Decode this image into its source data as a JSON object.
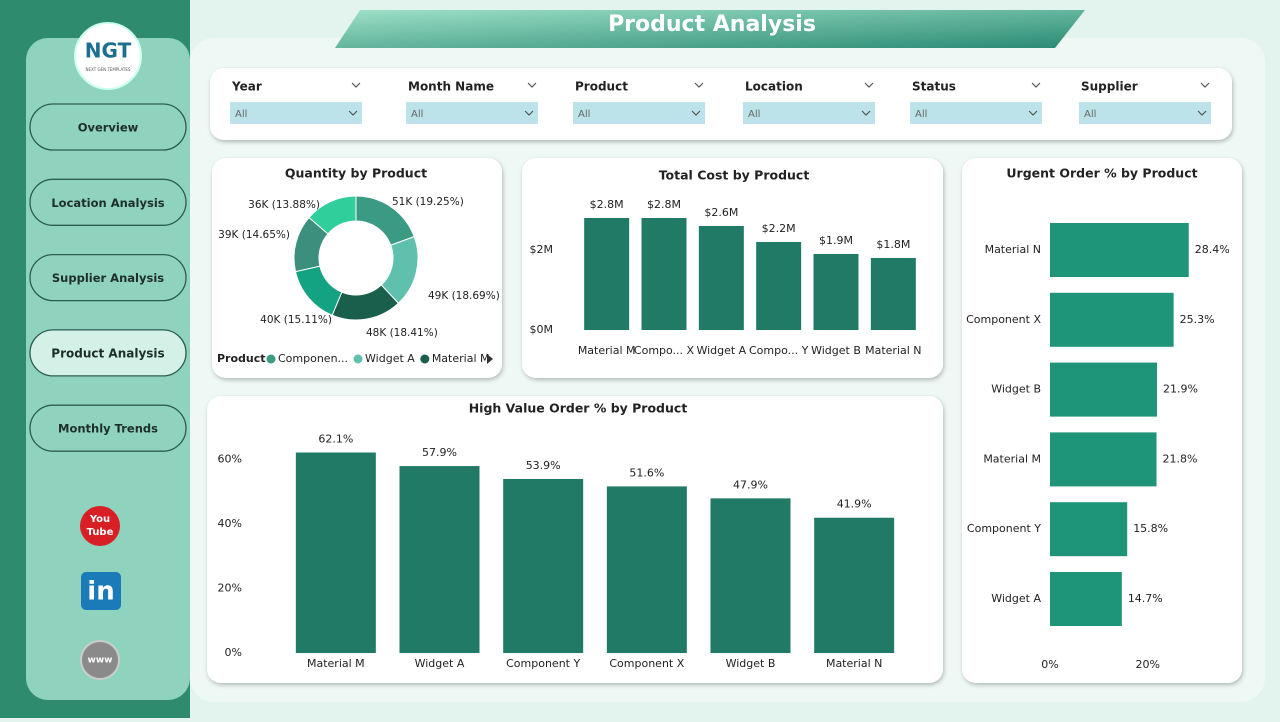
{
  "header": {
    "title": "Product Analysis"
  },
  "logo": {
    "text": "NGT",
    "subtext": "NEXT GEN TEMPLATES"
  },
  "nav": [
    "Overview",
    "Location Analysis",
    "Supplier Analysis",
    "Product Analysis",
    "Monthly Trends"
  ],
  "nav_active": 3,
  "icons": {
    "youtube": [
      "You",
      "Tube"
    ],
    "linkedin": "in",
    "web": "www"
  },
  "filters": [
    {
      "label": "Year",
      "value": "All"
    },
    {
      "label": "Month Name",
      "value": "All"
    },
    {
      "label": "Product",
      "value": "All"
    },
    {
      "label": "Location",
      "value": "All"
    },
    {
      "label": "Status",
      "value": "All"
    },
    {
      "label": "Supplier",
      "value": "All"
    }
  ],
  "chart_data": [
    {
      "type": "pie",
      "title": "Quantity by Product",
      "legend_title": "Product",
      "categories": [
        "Componen...",
        "Widget A",
        "Material M",
        null,
        null,
        null
      ],
      "values": [
        51000,
        49000,
        48000,
        40000,
        39000,
        36000
      ],
      "value_labels": [
        "51K (19.25%)",
        "49K (18.69%)",
        "48K (18.41%)",
        "40K (15.11%)",
        "39K (14.65%)",
        "36K (13.88%)"
      ],
      "colors": [
        "#3a9a83",
        "#5fc1ad",
        "#1a5e4c",
        "#14a382",
        "#3d8f7d",
        "#2fce9a"
      ]
    },
    {
      "type": "bar",
      "title": "Total Cost by Product",
      "categories": [
        "Material M",
        "Compo... X",
        "Widget A",
        "Compo... Y",
        "Widget B",
        "Material N"
      ],
      "values": [
        2800000,
        2800000,
        2600000,
        2200000,
        1900000,
        1800000
      ],
      "value_labels": [
        "$2.8M",
        "$2.8M",
        "$2.6M",
        "$2.2M",
        "$1.9M",
        "$1.8M"
      ],
      "color": "#217a66",
      "ylim": [
        0,
        3500000
      ],
      "yticks": [
        {
          "value": 0,
          "label": "$0M"
        },
        {
          "value": 2000000,
          "label": "$2M"
        }
      ]
    },
    {
      "type": "bar",
      "title": "High Value Order % by Product",
      "categories": [
        "Material M",
        "Widget A",
        "Component Y",
        "Component X",
        "Widget B",
        "Material N"
      ],
      "values": [
        62.1,
        57.9,
        53.9,
        51.6,
        47.9,
        41.9
      ],
      "value_labels": [
        "62.1%",
        "57.9%",
        "53.9%",
        "51.6%",
        "47.9%",
        "41.9%"
      ],
      "color": "#217a66",
      "ylim": [
        0,
        70
      ],
      "yticks": [
        {
          "value": 0,
          "label": "0%"
        },
        {
          "value": 20,
          "label": "20%"
        },
        {
          "value": 40,
          "label": "40%"
        },
        {
          "value": 60,
          "label": "60%"
        }
      ]
    },
    {
      "type": "barh",
      "title": "Urgent Order % by Product",
      "categories": [
        "Material N",
        "Component X",
        "Widget B",
        "Material M",
        "Component Y",
        "Widget A"
      ],
      "values": [
        28.4,
        25.3,
        21.9,
        21.8,
        15.8,
        14.7
      ],
      "value_labels": [
        "28.4%",
        "25.3%",
        "21.9%",
        "21.8%",
        "15.8%",
        "14.7%"
      ],
      "color": "#1e9478",
      "xlim": [
        0,
        35
      ],
      "xticks": [
        {
          "value": 0,
          "label": "0%"
        },
        {
          "value": 20,
          "label": "20%"
        }
      ]
    }
  ]
}
